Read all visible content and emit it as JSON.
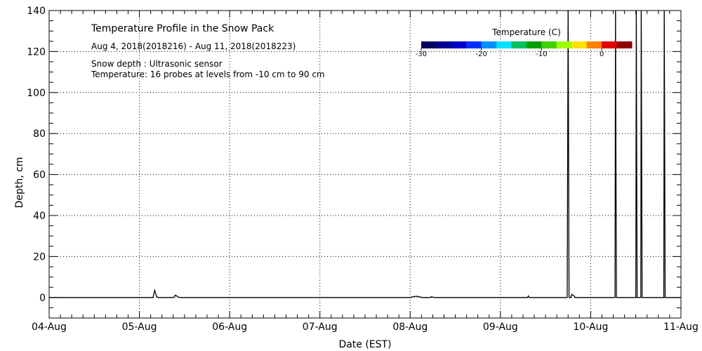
{
  "chart_data": {
    "type": "line",
    "title": "Temperature Profile in the Snow Pack",
    "subtitle": "Aug  4, 2018(2018216) - Aug 11, 2018(2018223)",
    "notes": [
      "Snow depth : Ultrasonic sensor",
      "Temperature: 16 probes at levels from -10 cm to 90 cm"
    ],
    "xlabel": "Date (EST)",
    "ylabel": "Depth, cm",
    "x_ticks": [
      "04-Aug",
      "05-Aug",
      "06-Aug",
      "07-Aug",
      "08-Aug",
      "09-Aug",
      "10-Aug",
      "11-Aug"
    ],
    "xlim_days": [
      0,
      7
    ],
    "y_ticks": [
      0,
      20,
      40,
      60,
      80,
      100,
      120,
      140
    ],
    "ylim": [
      -10,
      140
    ],
    "grid": true,
    "colorbar": {
      "title": "Temperature (C)",
      "range": [
        -30,
        5
      ],
      "ticks": [
        -30,
        -20,
        -10,
        0
      ],
      "colors": [
        "#00005f",
        "#000090",
        "#0000c8",
        "#0030ff",
        "#0090ff",
        "#00e0ff",
        "#00c060",
        "#00a000",
        "#40d000",
        "#a0ff00",
        "#ffe000",
        "#ff8000",
        "#e00000",
        "#900000"
      ]
    },
    "series": [
      {
        "points": [
          [
            0,
            0
          ],
          [
            1.15,
            0
          ],
          [
            1.17,
            3.5
          ],
          [
            1.19,
            0.5
          ],
          [
            1.21,
            0
          ],
          [
            1.38,
            0
          ],
          [
            1.4,
            1.2
          ],
          [
            1.43,
            0.2
          ],
          [
            1.45,
            0
          ],
          [
            4.0,
            0
          ],
          [
            4.03,
            0.4
          ],
          [
            4.07,
            0.6
          ],
          [
            4.1,
            0.4
          ],
          [
            4.13,
            0
          ],
          [
            4.22,
            0
          ],
          [
            4.24,
            0.4
          ],
          [
            4.26,
            0
          ],
          [
            5.3,
            0
          ],
          [
            5.31,
            0.8
          ],
          [
            5.32,
            0
          ],
          [
            5.74,
            0
          ],
          [
            5.75,
            145
          ],
          [
            5.76,
            0
          ],
          [
            5.78,
            0
          ],
          [
            5.79,
            1.5
          ],
          [
            5.81,
            1.0
          ],
          [
            5.83,
            0
          ],
          [
            6.27,
            0
          ],
          [
            6.275,
            145
          ],
          [
            6.28,
            70
          ],
          [
            6.285,
            0
          ],
          [
            6.5,
            0
          ],
          [
            6.505,
            145
          ],
          [
            6.51,
            70
          ],
          [
            6.515,
            0
          ],
          [
            6.555,
            0
          ],
          [
            6.56,
            145
          ],
          [
            6.565,
            70
          ],
          [
            6.57,
            0
          ],
          [
            6.81,
            0
          ],
          [
            6.815,
            145
          ],
          [
            6.82,
            70
          ],
          [
            6.825,
            0
          ],
          [
            7.0,
            0
          ]
        ]
      }
    ]
  }
}
